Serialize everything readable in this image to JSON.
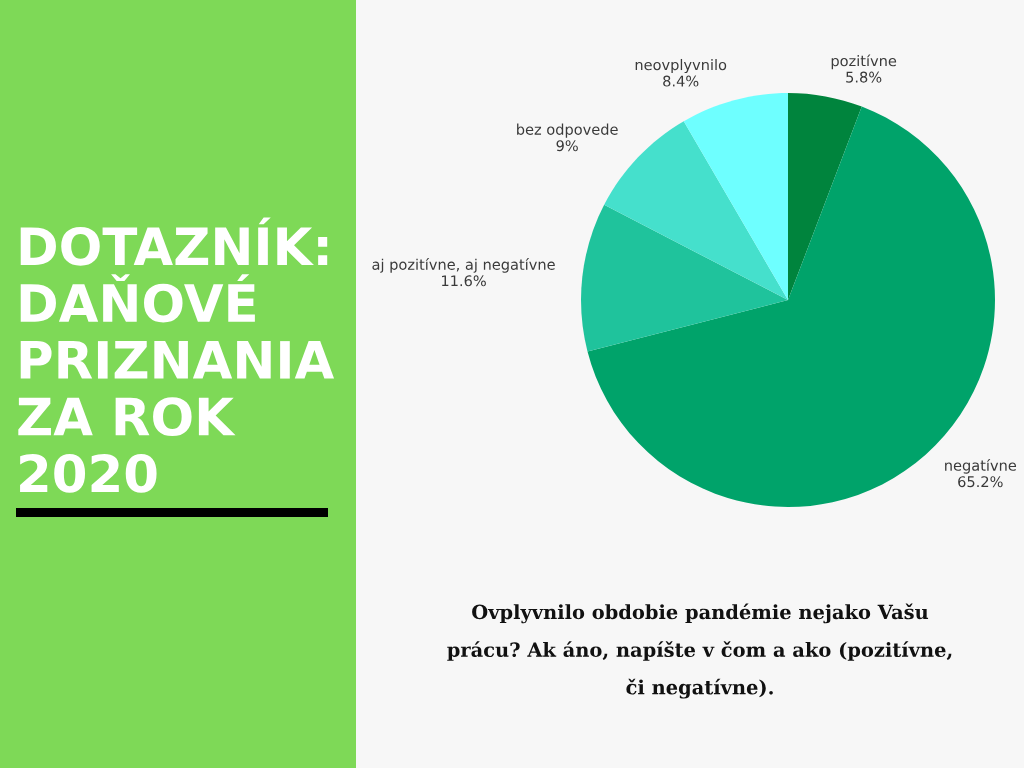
{
  "chart_data": {
    "type": "pie",
    "title": "DOTAZNÍK:\nDAŇOVÉ\nPRIZNANIA\nZA ROK\n2020",
    "subtitle": "Ovplyvnilo obdobie pandémie nejako Vašu\nprácu? Ak áno, napíšte v čom a ako (pozitívne,\nči negatívne).",
    "categories": [
      "pozitívne",
      "negatívne",
      "aj pozitívne, aj negatívne",
      "bez odpovede",
      "neovplyvnilo"
    ],
    "values": [
      5.8,
      65.2,
      11.6,
      9,
      8.4
    ],
    "value_labels": [
      "5.8%",
      "65.2%",
      "11.6%",
      "9%",
      "8.4%"
    ],
    "colors": [
      "#00843d",
      "#00a36a",
      "#1fc39c",
      "#45e0cc",
      "#6effff"
    ]
  }
}
